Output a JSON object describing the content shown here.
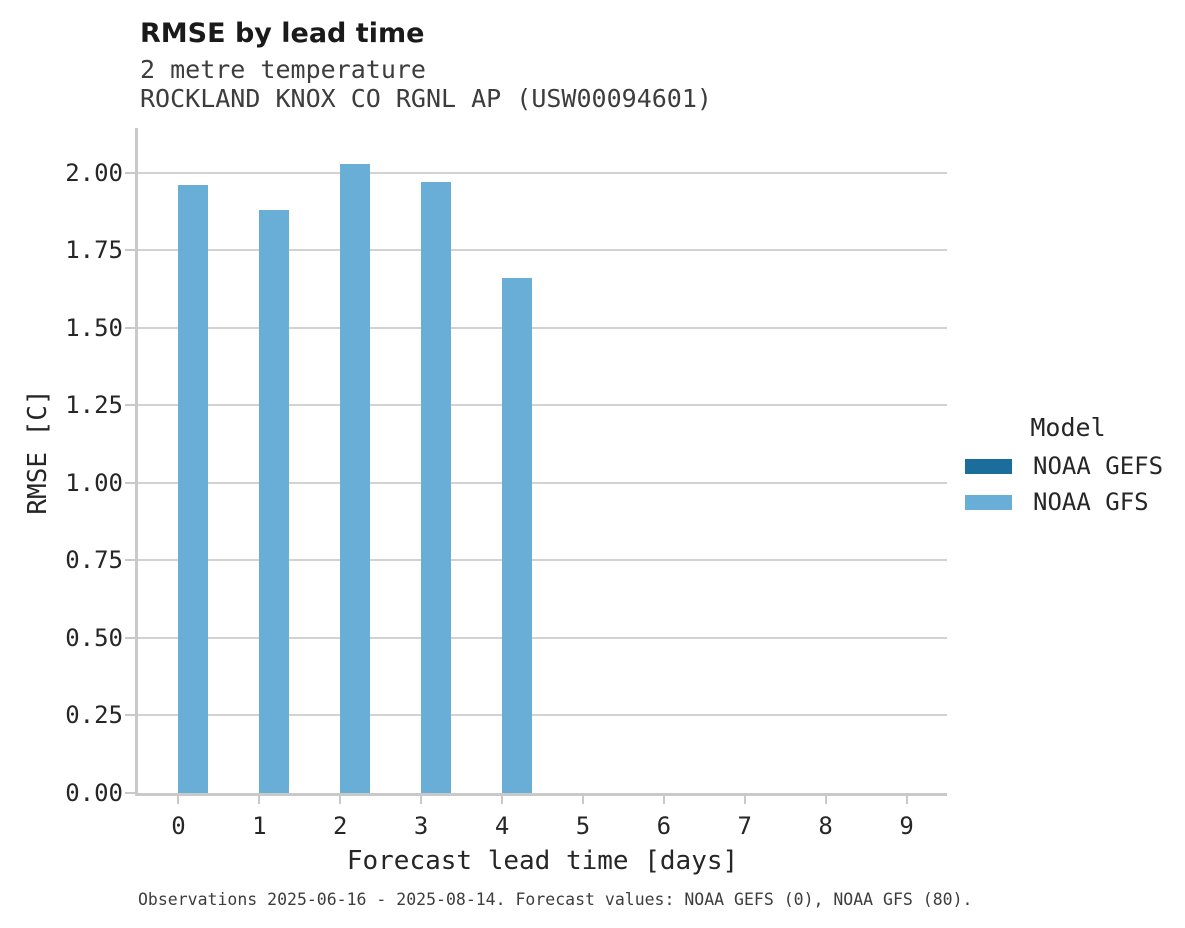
{
  "header": {
    "title": "RMSE by lead time",
    "subtitle_variable": "2 metre temperature",
    "subtitle_station": "ROCKLAND KNOX CO RGNL AP (USW00094601)"
  },
  "chart_data": {
    "type": "bar",
    "title": "RMSE by lead time",
    "subtitle": [
      "2 metre temperature",
      "ROCKLAND KNOX CO RGNL AP (USW00094601)"
    ],
    "categories": [
      0,
      1,
      2,
      3,
      4,
      5,
      6,
      7,
      8,
      9
    ],
    "xtick_labels": [
      "0",
      "1",
      "2",
      "3",
      "4",
      "5",
      "6",
      "7",
      "8",
      "9"
    ],
    "series": [
      {
        "name": "NOAA GEFS",
        "color": "#1b6d9c",
        "values": [
          null,
          null,
          null,
          null,
          null,
          null,
          null,
          null,
          null,
          null
        ]
      },
      {
        "name": "NOAA GFS",
        "color": "#69aed7",
        "values": [
          1.96,
          1.88,
          2.03,
          1.97,
          1.66,
          null,
          null,
          null,
          null,
          null
        ]
      }
    ],
    "xlabel": "Forecast lead time [days]",
    "ylabel": "RMSE [C]",
    "ylim": [
      0,
      2.145
    ],
    "yticks": [
      0.0,
      0.25,
      0.5,
      0.75,
      1.0,
      1.25,
      1.5,
      1.75,
      2.0
    ],
    "ytick_labels": [
      "0.00",
      "0.25",
      "0.50",
      "0.75",
      "1.00",
      "1.25",
      "1.50",
      "1.75",
      "2.00"
    ],
    "grid": "horizontal",
    "legend_title": "Model",
    "legend_position": "right"
  },
  "legend": {
    "title": "Model",
    "entries": [
      {
        "label": "NOAA GEFS",
        "color": "#1b6d9c"
      },
      {
        "label": "NOAA GFS",
        "color": "#69aed7"
      }
    ]
  },
  "footer": {
    "text": "Observations 2025-06-16 - 2025-08-14. Forecast values: NOAA GEFS (0), NOAA GFS (80)."
  },
  "colors": {
    "noaa_gefs": "#1b6d9c",
    "noaa_gfs": "#69aed7",
    "gridline": "#d2d2d2",
    "spine": "#c9c9c9",
    "text": "#262626",
    "muted_text": "#3d3d3d"
  }
}
